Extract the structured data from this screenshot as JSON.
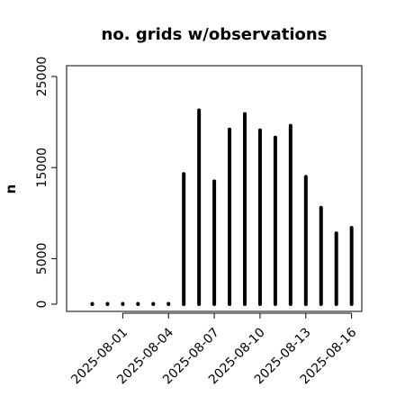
{
  "chart_data": {
    "type": "bar",
    "title": "no. grids w/observations",
    "xlabel": "",
    "ylabel": "n",
    "x": [
      "2025-07-30",
      "2025-07-31",
      "2025-08-01",
      "2025-08-02",
      "2025-08-03",
      "2025-08-04",
      "2025-08-05",
      "2025-08-06",
      "2025-08-07",
      "2025-08-08",
      "2025-08-09",
      "2025-08-10",
      "2025-08-11",
      "2025-08-12",
      "2025-08-13",
      "2025-08-14",
      "2025-08-15",
      "2025-08-16"
    ],
    "values": [
      0,
      0,
      0,
      0,
      0,
      0,
      14300,
      21300,
      13500,
      19200,
      20900,
      19100,
      18300,
      19600,
      14000,
      10600,
      7800,
      8400
    ],
    "ylim": [
      0,
      25000
    ],
    "yticks": [
      0,
      5000,
      15000,
      25000
    ],
    "xtick_labels": [
      {
        "date": "2025-08-01",
        "label": "2025-08-01",
        "color": "#000000"
      },
      {
        "date": "2025-08-04",
        "label": "2025-08-04",
        "color": "#000000"
      },
      {
        "date": "2025-08-07",
        "label": "2025-08-07",
        "color": "#228b22"
      },
      {
        "date": "2025-08-10",
        "label": "2025-08-10",
        "color": "#000000"
      },
      {
        "date": "2025-08-13",
        "label": "2025-08-13",
        "color": "#000000"
      },
      {
        "date": "2025-08-16",
        "label": "2025-08-16",
        "color": "#000000"
      }
    ],
    "bar_color": "#000000",
    "grid": false
  }
}
